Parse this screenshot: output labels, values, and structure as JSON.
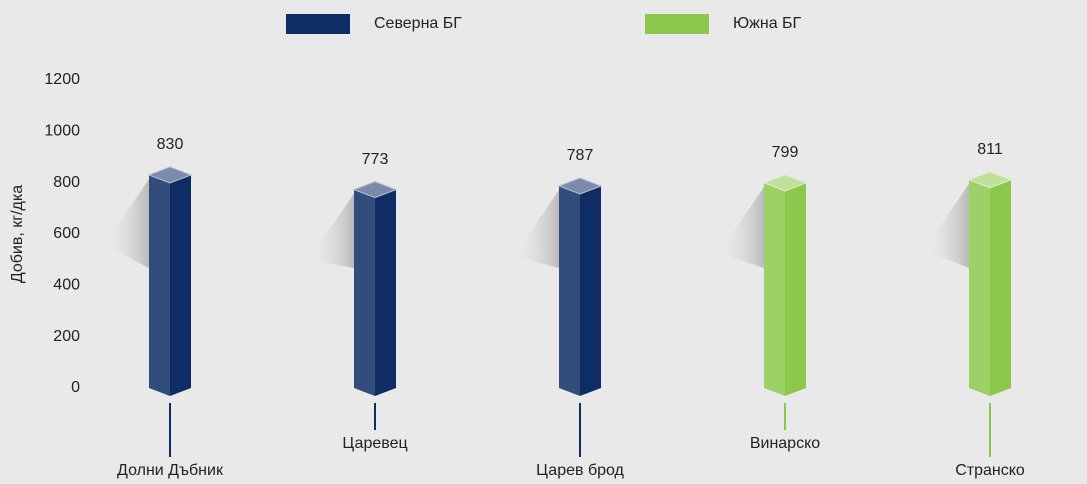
{
  "chart_data": {
    "type": "bar3d",
    "y_label": "Добив, кг/дка",
    "categories": [
      "Долни Дъбник",
      "Царевец",
      "Царев брод",
      "Винарско",
      "Странско"
    ],
    "series": [
      {
        "name": "Северна БГ",
        "color": "#0e2d64",
        "values": [
          830,
          773,
          787,
          null,
          null
        ]
      },
      {
        "name": "Южна БГ",
        "color": "#8cc84b",
        "values": [
          null,
          null,
          null,
          799,
          811
        ]
      }
    ],
    "ylim": [
      0,
      1200
    ],
    "yticks": [
      0,
      200,
      400,
      600,
      800,
      1000,
      1200
    ]
  }
}
